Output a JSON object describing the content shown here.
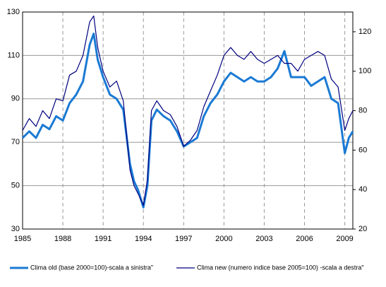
{
  "chart_data": {
    "type": "line",
    "x": [
      1985,
      1985.5,
      1986,
      1986.5,
      1987,
      1987.5,
      1988,
      1988.5,
      1989,
      1989.5,
      1990,
      1990.3,
      1990.6,
      1991,
      1991.5,
      1992,
      1992.5,
      1993,
      1993.3,
      1993.6,
      1994,
      1994.3,
      1994.6,
      1995,
      1995.5,
      1996,
      1996.5,
      1997,
      1997.5,
      1998,
      1998.5,
      1999,
      1999.5,
      2000,
      2000.5,
      2001,
      2001.5,
      2002,
      2002.5,
      2003,
      2003.5,
      2004,
      2004.5,
      2005,
      2005.5,
      2006,
      2006.5,
      2007,
      2007.5,
      2008,
      2008.5,
      2009,
      2009.3,
      2009.6
    ],
    "series": [
      {
        "name": "Clima old (base 2000=100)-scala a sinistra\"",
        "color": "#1a7ad4",
        "values": [
          72,
          75,
          72,
          78,
          76,
          82,
          80,
          88,
          92,
          98,
          115,
          120,
          108,
          100,
          92,
          90,
          85,
          60,
          52,
          48,
          40,
          50,
          80,
          85,
          82,
          80,
          75,
          68,
          70,
          72,
          82,
          88,
          92,
          98,
          102,
          100,
          98,
          100,
          98,
          98,
          100,
          104,
          112,
          100,
          100,
          100,
          96,
          98,
          100,
          90,
          88,
          65,
          72,
          75
        ]
      },
      {
        "name": "Clima new (numero indice base 2005=100) -scala a destra\"",
        "color": "#000080",
        "axis": "y2",
        "values": [
          70,
          76,
          72,
          80,
          76,
          86,
          85,
          98,
          100,
          108,
          125,
          128,
          112,
          100,
          92,
          95,
          85,
          50,
          42,
          38,
          32,
          45,
          80,
          85,
          80,
          78,
          72,
          62,
          65,
          70,
          82,
          90,
          98,
          108,
          112,
          108,
          106,
          110,
          106,
          104,
          106,
          108,
          104,
          104,
          100,
          106,
          108,
          110,
          108,
          96,
          92,
          70,
          76,
          80
        ]
      }
    ],
    "xlim": [
      1985,
      2009.6
    ],
    "xticks": [
      1985,
      1988,
      1991,
      1994,
      1997,
      2000,
      2003,
      2006,
      2009
    ],
    "ylim": [
      30,
      130
    ],
    "yticks": [
      30,
      50,
      70,
      90,
      110,
      130
    ],
    "y2lim": [
      20,
      130
    ],
    "y2ticks": [
      20,
      40,
      60,
      80,
      100,
      120
    ],
    "grid": true
  }
}
